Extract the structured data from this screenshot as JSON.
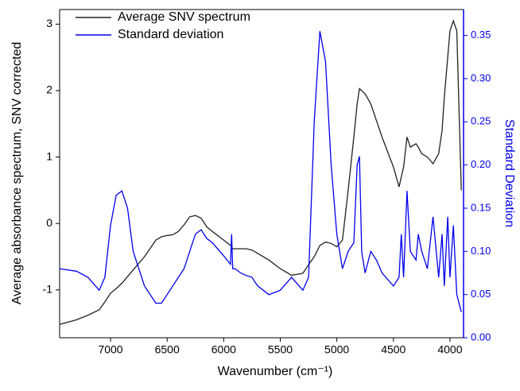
{
  "chart_data": {
    "type": "line",
    "x_label": "Wavenumber (cm⁻¹)",
    "y_label": "Average absorbance spectrum, SNV corrected",
    "y2_label": "Standard Deviation",
    "x": [
      7450,
      7300,
      7200,
      7100,
      7050,
      7000,
      6950,
      6900,
      6850,
      6800,
      6700,
      6600,
      6550,
      6500,
      6450,
      6400,
      6350,
      6300,
      6250,
      6200,
      6150,
      6100,
      6000,
      5940,
      5930,
      5920,
      5900,
      5850,
      5800,
      5750,
      5700,
      5600,
      5500,
      5400,
      5300,
      5250,
      5200,
      5150,
      5100,
      5050,
      5000,
      4950,
      4900,
      4850,
      4820,
      4800,
      4780,
      4750,
      4700,
      4650,
      4600,
      4500,
      4450,
      4430,
      4410,
      4380,
      4350,
      4300,
      4280,
      4250,
      4200,
      4150,
      4100,
      4070,
      4050,
      4020,
      4000,
      3970,
      3940,
      3900
    ],
    "xlim": [
      7450,
      3880
    ],
    "xticks": [
      7000,
      6500,
      6000,
      5500,
      5000,
      4500,
      4000
    ],
    "ylim": [
      -1.72,
      3.22
    ],
    "yticks": [
      -1,
      0,
      1,
      2,
      3
    ],
    "y2lim": [
      0,
      0.38
    ],
    "y2ticks": [
      {
        "value": 0,
        "label": "0.00"
      },
      {
        "value": 0.05,
        "label": "0.05"
      },
      {
        "value": 0.1,
        "label": "0.10"
      },
      {
        "value": 0.15,
        "label": "0.15"
      },
      {
        "value": 0.2,
        "label": "0.20"
      },
      {
        "value": 0.25,
        "label": "0.25"
      },
      {
        "value": 0.3,
        "label": "0.30"
      },
      {
        "value": 0.35,
        "label": "0.35"
      }
    ],
    "legend": "upper left",
    "series": [
      {
        "name": "Average SNV spectrum",
        "color": "#222222",
        "values": [
          -1.52,
          -1.45,
          -1.38,
          -1.3,
          -1.18,
          -1.05,
          -0.98,
          -0.9,
          -0.8,
          -0.7,
          -0.5,
          -0.25,
          -0.2,
          -0.18,
          -0.17,
          -0.12,
          -0.02,
          0.1,
          0.12,
          0.08,
          -0.05,
          -0.12,
          -0.25,
          -0.33,
          -0.36,
          -0.38,
          -0.38,
          -0.38,
          -0.38,
          -0.4,
          -0.45,
          -0.55,
          -0.68,
          -0.78,
          -0.75,
          -0.62,
          -0.5,
          -0.33,
          -0.28,
          -0.3,
          -0.35,
          -0.25,
          0.5,
          1.3,
          1.8,
          2.03,
          2.0,
          1.95,
          1.8,
          1.55,
          1.3,
          0.85,
          0.55,
          0.7,
          0.85,
          1.3,
          1.15,
          1.2,
          1.15,
          1.05,
          1.0,
          0.9,
          1.05,
          1.4,
          1.9,
          2.5,
          2.9,
          3.05,
          2.9,
          0.5
        ]
      },
      {
        "name": "Standard deviation",
        "color": "#0000ee",
        "axis": "y2",
        "values": [
          0.08,
          0.077,
          0.07,
          0.055,
          0.07,
          0.13,
          0.165,
          0.17,
          0.15,
          0.1,
          0.06,
          0.04,
          0.04,
          0.05,
          0.06,
          0.07,
          0.08,
          0.1,
          0.12,
          0.125,
          0.115,
          0.11,
          0.095,
          0.085,
          0.12,
          0.08,
          0.08,
          0.075,
          0.072,
          0.07,
          0.06,
          0.05,
          0.055,
          0.07,
          0.055,
          0.07,
          0.25,
          0.355,
          0.32,
          0.2,
          0.12,
          0.08,
          0.1,
          0.11,
          0.2,
          0.21,
          0.1,
          0.075,
          0.1,
          0.09,
          0.075,
          0.06,
          0.07,
          0.12,
          0.07,
          0.17,
          0.1,
          0.09,
          0.12,
          0.1,
          0.08,
          0.14,
          0.07,
          0.12,
          0.06,
          0.14,
          0.07,
          0.13,
          0.05,
          0.03
        ]
      }
    ]
  }
}
